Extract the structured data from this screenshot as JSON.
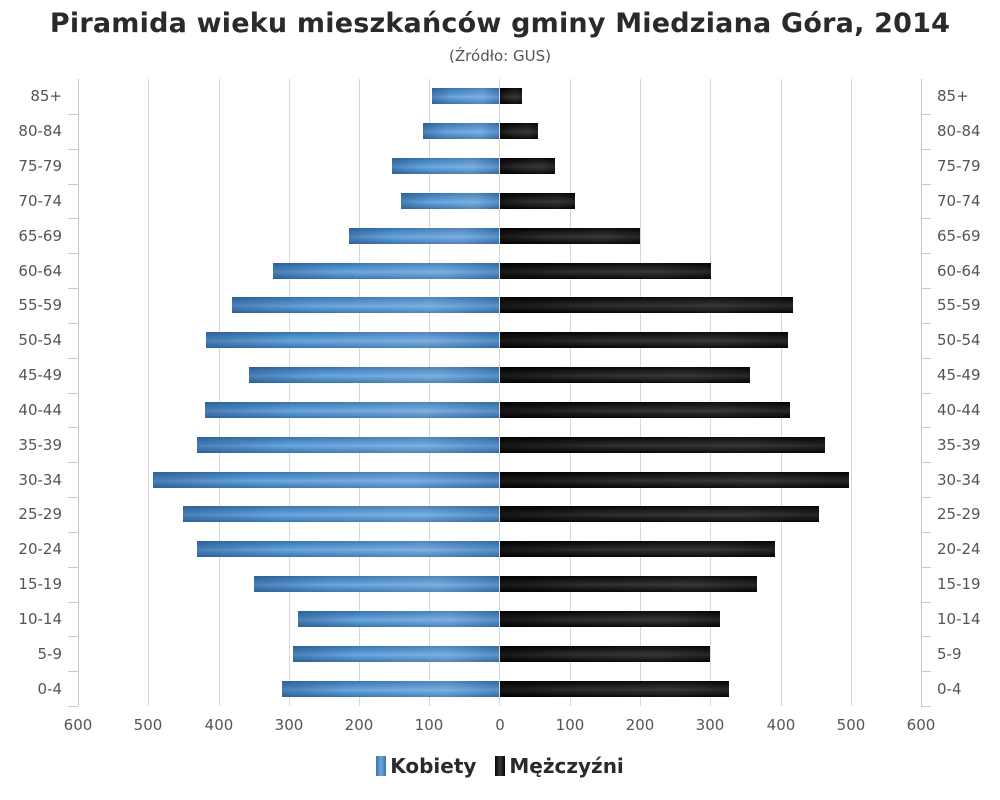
{
  "title": "Piramida wieku mieszkańców gminy Miedziana Góra, 2014",
  "subtitle": "(Źródło: GUS)",
  "legend": {
    "female_label": "Kobiety",
    "male_label": "Mężczyźni"
  },
  "colors": {
    "female": "#4a88c6",
    "male": "#1a1a1a",
    "grid": "#d8d8d8",
    "axis": "#c0cad8"
  },
  "x_ticks": [
    "600",
    "500",
    "400",
    "300",
    "200",
    "100",
    "0",
    "100",
    "200",
    "300",
    "400",
    "500",
    "600"
  ],
  "chart_data": {
    "type": "bar",
    "orientation": "horizontal-population-pyramid",
    "title": "Piramida wieku mieszkańców gminy Miedziana Góra, 2014",
    "subtitle": "(Źródło: GUS)",
    "xlabel": "",
    "ylabel": "",
    "xlim": [
      -600,
      600
    ],
    "grid": true,
    "legend_position": "bottom",
    "categories": [
      "85+",
      "80-84",
      "75-79",
      "70-74",
      "65-69",
      "60-64",
      "55-59",
      "50-54",
      "45-49",
      "40-44",
      "35-39",
      "30-34",
      "25-29",
      "20-24",
      "15-19",
      "10-14",
      "5-9",
      "0-4"
    ],
    "series": [
      {
        "name": "Kobiety",
        "side": "left",
        "values": [
          95,
          109,
          152,
          139,
          214,
          322,
          380,
          417,
          356,
          419,
          430,
          493,
          450,
          431,
          349,
          287,
          294,
          309
        ]
      },
      {
        "name": "Mężczyźni",
        "side": "right",
        "values": [
          31,
          54,
          78,
          107,
          199,
          300,
          417,
          410,
          356,
          413,
          463,
          498,
          455,
          392,
          366,
          313,
          299,
          326
        ]
      }
    ]
  }
}
